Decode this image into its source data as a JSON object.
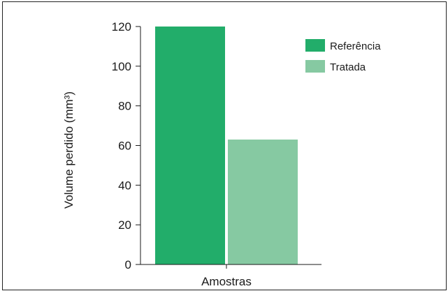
{
  "chart_data": {
    "type": "bar",
    "title": "",
    "xlabel": "Amostras",
    "ylabel": "Volume perdido (mm³)",
    "ylim": [
      0,
      120
    ],
    "yticks": [
      0,
      20,
      40,
      60,
      80,
      100,
      120
    ],
    "grid": false,
    "legend_position": "top-right",
    "series": [
      {
        "name": "Referência",
        "value": 120,
        "color": "#22ad6a"
      },
      {
        "name": "Tratada",
        "value": 63,
        "color": "#86c9a2"
      }
    ]
  }
}
